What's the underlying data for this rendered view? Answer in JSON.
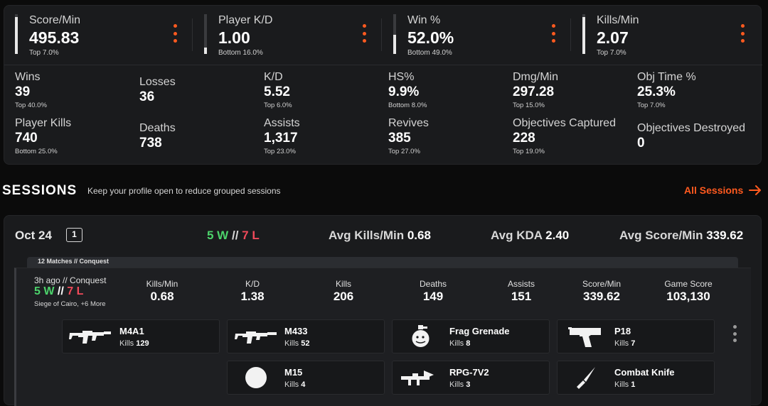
{
  "top_stats": [
    {
      "label": "Score/Min",
      "value": "495.83",
      "rank": "Top 7.0%",
      "fill": 0.93
    },
    {
      "label": "Player K/D",
      "value": "1.00",
      "rank": "Bottom 16.0%",
      "fill": 0.16
    },
    {
      "label": "Win %",
      "value": "52.0%",
      "rank": "Bottom 49.0%",
      "fill": 0.49
    },
    {
      "label": "Kills/Min",
      "value": "2.07",
      "rank": "Top 7.0%",
      "fill": 0.93
    }
  ],
  "stats": [
    {
      "label": "Wins",
      "value": "39",
      "rank": "Top 40.0%"
    },
    {
      "label": "Losses",
      "value": "36",
      "rank": ""
    },
    {
      "label": "K/D",
      "value": "5.52",
      "rank": "Top 6.0%"
    },
    {
      "label": "HS%",
      "value": "9.9%",
      "rank": "Bottom 8.0%"
    },
    {
      "label": "Dmg/Min",
      "value": "297.28",
      "rank": "Top 15.0%"
    },
    {
      "label": "Obj Time %",
      "value": "25.3%",
      "rank": "Top 7.0%"
    },
    {
      "label": "Player Kills",
      "value": "740",
      "rank": "Bottom 25.0%"
    },
    {
      "label": "Deaths",
      "value": "738",
      "rank": ""
    },
    {
      "label": "Assists",
      "value": "1,317",
      "rank": "Top 23.0%"
    },
    {
      "label": "Revives",
      "value": "385",
      "rank": "Top 27.0%"
    },
    {
      "label": "Objectives Captured",
      "value": "228",
      "rank": "Top 19.0%"
    },
    {
      "label": "Objectives Destroyed",
      "value": "0",
      "rank": ""
    }
  ],
  "sessions": {
    "title": "SESSIONS",
    "note": "Keep your profile open to reduce grouped sessions",
    "all_link": "All Sessions"
  },
  "day": {
    "date": "Oct 24",
    "count": "1",
    "wins": "5 W",
    "sep": "//",
    "losses": "7 L",
    "avg_kills_label": "Avg Kills/Min",
    "avg_kills": "0.68",
    "avg_kda_label": "Avg KDA",
    "avg_kda": "2.40",
    "avg_score_label": "Avg Score/Min",
    "avg_score": "339.62",
    "group_label": "12 Matches // Conquest"
  },
  "match": {
    "time": "3h ago // Conquest",
    "wins": "5 W",
    "sep": "//",
    "losses": "7 L",
    "map": "Siege of Cairo, +6 More",
    "cols": [
      {
        "label": "Kills/Min",
        "value": "0.68"
      },
      {
        "label": "K/D",
        "value": "1.38"
      },
      {
        "label": "Kills",
        "value": "206"
      },
      {
        "label": "Deaths",
        "value": "149"
      },
      {
        "label": "Assists",
        "value": "151"
      },
      {
        "label": "Score/Min",
        "value": "339.62"
      },
      {
        "label": "Game Score",
        "value": "103,130"
      }
    ],
    "kills_label": "Kills",
    "weapons": [
      {
        "name": "M4A1",
        "kills": "129",
        "icon": "assault-rifle-icon"
      },
      {
        "name": "M433",
        "kills": "52",
        "icon": "assault-rifle-icon"
      },
      {
        "name": "Frag Grenade",
        "kills": "8",
        "icon": "grenade-icon"
      },
      {
        "name": "P18",
        "kills": "7",
        "icon": "pistol-icon"
      },
      {
        "name": "M15",
        "kills": "4",
        "icon": "circle-icon"
      },
      {
        "name": "RPG-7V2",
        "kills": "3",
        "icon": "rocket-launcher-icon"
      },
      {
        "name": "Combat Knife",
        "kills": "1",
        "icon": "knife-icon"
      }
    ]
  },
  "colors": {
    "accent": "#ff5a1f",
    "win": "#4cd36b",
    "loss": "#f04a5a"
  }
}
